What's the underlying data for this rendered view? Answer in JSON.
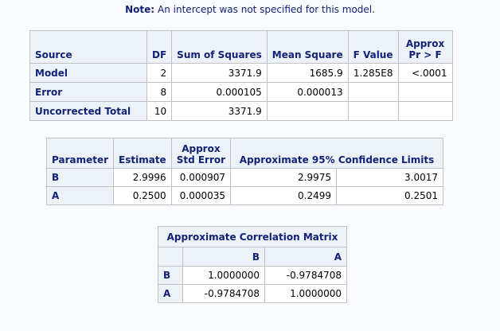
{
  "note": {
    "label": "Note:",
    "text": "An intercept was not specified for this model."
  },
  "anova": {
    "headers": {
      "source": "Source",
      "df": "DF",
      "ss": "Sum of Squares",
      "ms": "Mean Square",
      "f": "F Value",
      "p_line1": "Approx",
      "p_line2": "Pr > F"
    },
    "rows": [
      {
        "source": "Model",
        "df": "2",
        "ss": "3371.9",
        "ms": "1685.9",
        "f": "1.285E8",
        "p": "<.0001"
      },
      {
        "source": "Error",
        "df": "8",
        "ss": "0.000105",
        "ms": "0.000013",
        "f": "",
        "p": ""
      },
      {
        "source": "Uncorrected Total",
        "df": "10",
        "ss": "3371.9",
        "ms": "",
        "f": "",
        "p": ""
      }
    ]
  },
  "params": {
    "headers": {
      "parameter": "Parameter",
      "estimate": "Estimate",
      "se_line1": "Approx",
      "se_line2": "Std Error",
      "ci": "Approximate 95% Confidence Limits"
    },
    "rows": [
      {
        "name": "B",
        "estimate": "2.9996",
        "se": "0.000907",
        "lower": "2.9975",
        "upper": "3.0017"
      },
      {
        "name": "A",
        "estimate": "0.2500",
        "se": "0.000035",
        "lower": "0.2499",
        "upper": "0.2501"
      }
    ]
  },
  "corr": {
    "title": "Approximate Correlation Matrix",
    "cols": [
      "B",
      "A"
    ],
    "rows": [
      {
        "name": "B",
        "values": [
          "1.0000000",
          "-0.9784708"
        ]
      },
      {
        "name": "A",
        "values": [
          "-0.9784708",
          "1.0000000"
        ]
      }
    ]
  }
}
